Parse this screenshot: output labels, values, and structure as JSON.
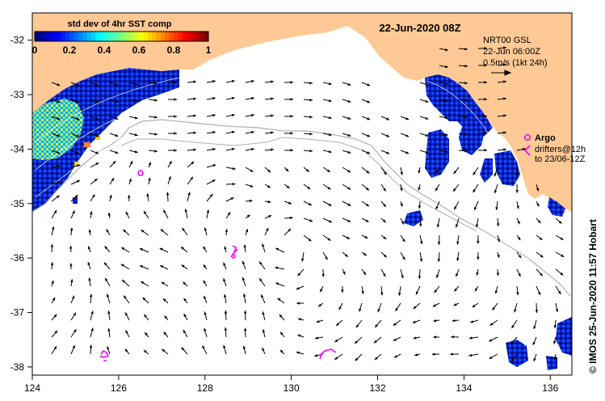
{
  "title": "22-Jun-2020 08Z",
  "colorbar": {
    "title": "std dev of 4hr SST comp",
    "ticks": [
      "0",
      "0.2",
      "0.4",
      "0.6",
      "0.8",
      "1"
    ],
    "colors": [
      "#00007f",
      "#0000ff",
      "#007fff",
      "#00ffff",
      "#7fff7f",
      "#ffff00",
      "#ff7f00",
      "#ff0000",
      "#7f0000"
    ]
  },
  "currents_legend": {
    "line1": "NRT00 GSL",
    "line2": "22-Jun 06:00Z",
    "line3": "0.5m/s (1kt 24h)"
  },
  "argo_legend": {
    "label": "Argo",
    "line1": "drifters@12h",
    "line2": "to 23/06-12Z"
  },
  "credit": "© IMOS 25-Jun-2020 11:57 Hobart",
  "x_ticks": [
    "124",
    "126",
    "128",
    "130",
    "132",
    "134",
    "136"
  ],
  "y_ticks": [
    "-32",
    "-33",
    "-34",
    "-35",
    "-36",
    "-37",
    "-38"
  ],
  "colors": {
    "land": "#fec995",
    "argo": "#ff00ff",
    "bathy": "#b0b0b0"
  }
}
